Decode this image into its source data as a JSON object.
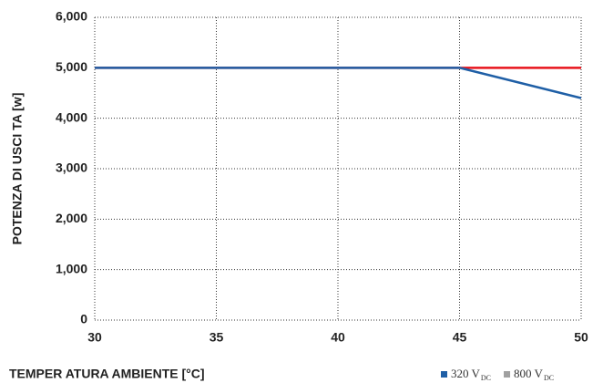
{
  "chart_data": {
    "type": "line",
    "x_label": "TEMPER ATURA AMBIENTE [°C]",
    "y_label": "POTENZA DI USCI TA [w]",
    "x": [
      30,
      45,
      50
    ],
    "series": [
      {
        "name": "800 V",
        "name_sub": "DC",
        "color": "#e8141c",
        "legend_color": "#a0a0a0",
        "values": [
          5000,
          5000,
          5000
        ]
      },
      {
        "name": "320 V",
        "name_sub": "DC",
        "color": "#1f5fa6",
        "legend_color": "#1f5fa6",
        "values": [
          5000,
          5000,
          4400
        ]
      }
    ],
    "legend_order": [
      1,
      0
    ],
    "xlim": [
      30,
      50
    ],
    "xticks": [
      30,
      35,
      40,
      45,
      50
    ],
    "ylim": [
      0,
      6000
    ],
    "yticks": [
      0,
      {
        "value": 1000,
        "label": "1,000"
      },
      {
        "value": 2000,
        "label": "2,000"
      },
      {
        "value": 3000,
        "label": "3,000"
      },
      {
        "value": 4000,
        "label": "4,000"
      },
      {
        "value": 5000,
        "label": "5,000"
      },
      {
        "value": 6000,
        "label": "6,000"
      }
    ],
    "grid": true
  }
}
